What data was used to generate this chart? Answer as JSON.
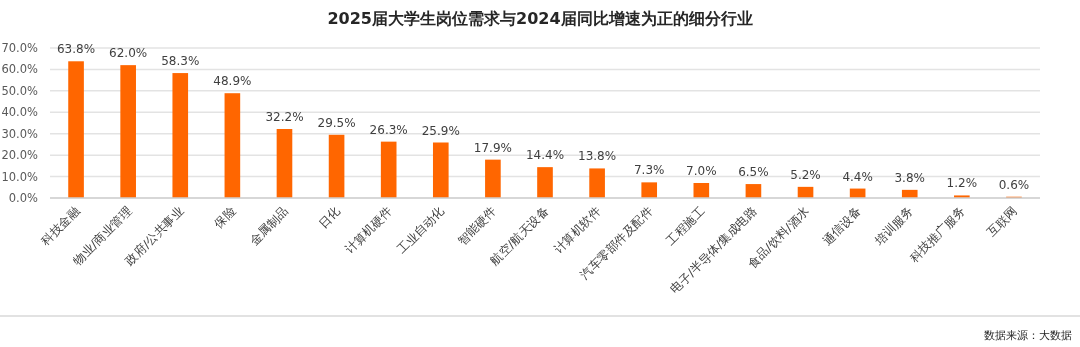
{
  "chart_data": {
    "type": "bar",
    "title": "2025届大学生岗位需求与2024届同比增速为正的细分行业",
    "categories": [
      "科技金融",
      "物业/商业管理",
      "政府/公共事业",
      "保险",
      "金属制品",
      "日化",
      "计算机硬件",
      "工业自动化",
      "智能硬件",
      "航空/航天设备",
      "计算机软件",
      "汽车零部件及配件",
      "工程施工",
      "电子/半导体/集成电路",
      "食品/饮料/酒水",
      "通信设备",
      "培训服务",
      "科技推广服务",
      "互联网"
    ],
    "values": [
      63.8,
      62.0,
      58.3,
      48.9,
      32.2,
      29.5,
      26.3,
      25.9,
      17.9,
      14.4,
      13.8,
      7.3,
      7.0,
      6.5,
      5.2,
      4.4,
      3.8,
      1.2,
      0.6
    ],
    "value_labels": [
      "63.8%",
      "62.0%",
      "58.3%",
      "48.9%",
      "32.2%",
      "29.5%",
      "26.3%",
      "25.9%",
      "17.9%",
      "14.4%",
      "13.8%",
      "7.3%",
      "7.0%",
      "6.5%",
      "5.2%",
      "4.4%",
      "3.8%",
      "1.2%",
      "0.6%"
    ],
    "color": "#ff6600",
    "ylim": [
      0,
      70
    ],
    "yticks": [
      {
        "value": 0,
        "label": "0.0%"
      },
      {
        "value": 10,
        "label": "10.0%"
      },
      {
        "value": 20,
        "label": "20.0%"
      },
      {
        "value": 30,
        "label": "30.0%"
      },
      {
        "value": 40,
        "label": "40.0%"
      },
      {
        "value": 50,
        "label": "50.0%"
      },
      {
        "value": 60,
        "label": "60.0%"
      },
      {
        "value": 70,
        "label": "70.0%"
      }
    ],
    "grid": "y",
    "annotations": [
      "数据来源：大数据"
    ]
  }
}
